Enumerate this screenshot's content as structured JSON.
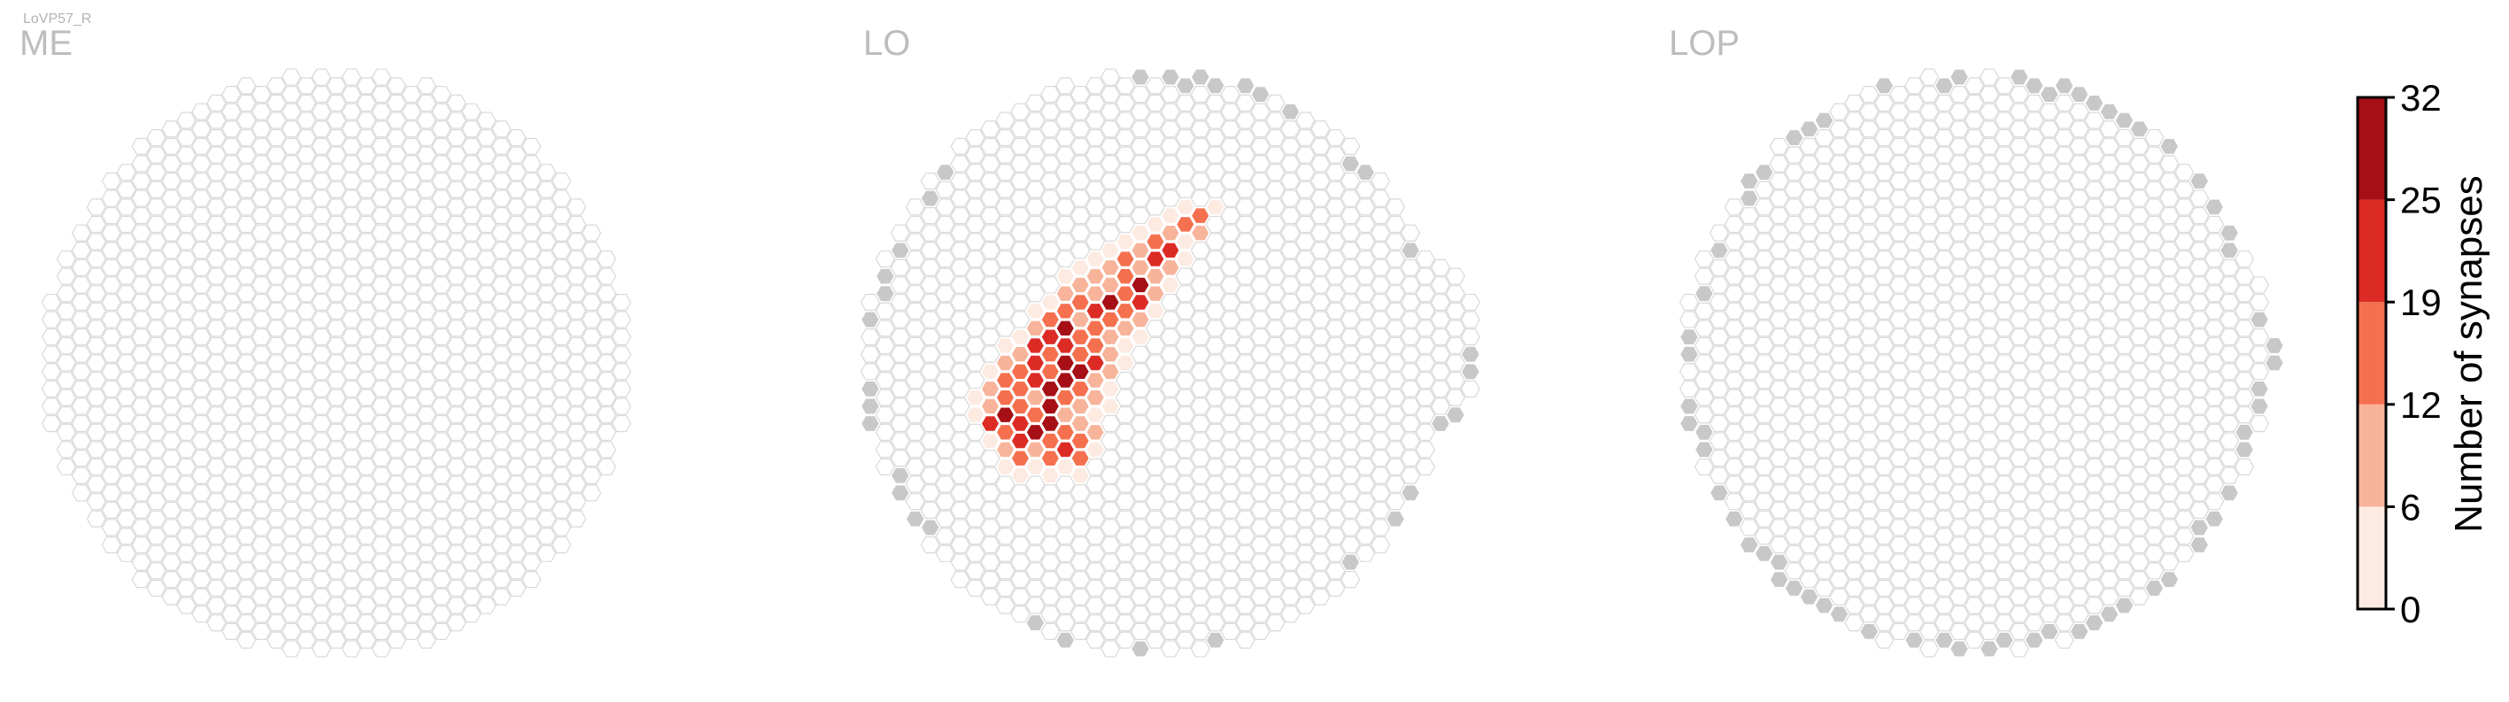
{
  "figure": {
    "cell_label": "LoVP57_R"
  },
  "chart_data": {
    "type": "heatmap",
    "title": "LoVP57_R",
    "panels": [
      {
        "label": "ME",
        "shape": "round",
        "synapse_cells": [],
        "edge_cells_gray": []
      },
      {
        "label": "LO",
        "shape": "roundish-bulge-right",
        "synapse_cells_description_hotspot": "upper-left quadrant",
        "synapse_cells": [
          [
            -10,
            6,
            3
          ],
          [
            -9,
            6,
            2
          ],
          [
            -8,
            6,
            5
          ],
          [
            -7,
            6,
            4
          ],
          [
            -6,
            6,
            3
          ],
          [
            -5,
            6,
            2
          ],
          [
            -10,
            5,
            8
          ],
          [
            -9,
            5,
            14
          ],
          [
            -8,
            5,
            10
          ],
          [
            -7,
            5,
            16
          ],
          [
            -6,
            5,
            20
          ],
          [
            -5,
            5,
            12
          ],
          [
            -4,
            5,
            4
          ],
          [
            -11,
            4,
            3
          ],
          [
            -10,
            4,
            12
          ],
          [
            -9,
            4,
            24
          ],
          [
            -8,
            4,
            30
          ],
          [
            -7,
            4,
            18
          ],
          [
            -6,
            4,
            14
          ],
          [
            -5,
            4,
            16
          ],
          [
            -4,
            4,
            6
          ],
          [
            -12,
            3,
            4
          ],
          [
            -11,
            3,
            20
          ],
          [
            -10,
            3,
            28
          ],
          [
            -9,
            3,
            22
          ],
          [
            -8,
            3,
            18
          ],
          [
            -7,
            3,
            29
          ],
          [
            -6,
            3,
            10
          ],
          [
            -5,
            3,
            8
          ],
          [
            -4,
            3,
            3
          ],
          [
            -12,
            2,
            5
          ],
          [
            -11,
            2,
            10
          ],
          [
            -10,
            2,
            18
          ],
          [
            -9,
            2,
            14
          ],
          [
            -8,
            2,
            8
          ],
          [
            -7,
            2,
            26
          ],
          [
            -6,
            2,
            16
          ],
          [
            -5,
            2,
            10
          ],
          [
            -4,
            2,
            6
          ],
          [
            -3,
            2,
            4
          ],
          [
            -11,
            1,
            8
          ],
          [
            -10,
            1,
            12
          ],
          [
            -9,
            1,
            16
          ],
          [
            -8,
            1,
            24
          ],
          [
            -7,
            1,
            28
          ],
          [
            -6,
            1,
            30
          ],
          [
            -5,
            1,
            12
          ],
          [
            -4,
            1,
            8
          ],
          [
            -3,
            1,
            3
          ],
          [
            -11,
            0,
            4
          ],
          [
            -10,
            0,
            6
          ],
          [
            -9,
            0,
            18
          ],
          [
            -8,
            0,
            22
          ],
          [
            -7,
            0,
            12
          ],
          [
            -6,
            0,
            27
          ],
          [
            -5,
            0,
            29
          ],
          [
            -4,
            0,
            20
          ],
          [
            -3,
            0,
            6
          ],
          [
            -2,
            0,
            3
          ],
          [
            -10,
            -1,
            3
          ],
          [
            -9,
            -1,
            10
          ],
          [
            -8,
            -1,
            24
          ],
          [
            -7,
            -1,
            14
          ],
          [
            -6,
            -1,
            20
          ],
          [
            -5,
            -1,
            14
          ],
          [
            -4,
            -1,
            12
          ],
          [
            -3,
            -1,
            10
          ],
          [
            -2,
            -1,
            4
          ],
          [
            -9,
            -2,
            4
          ],
          [
            -8,
            -2,
            8
          ],
          [
            -7,
            -2,
            22
          ],
          [
            -6,
            -2,
            26
          ],
          [
            -5,
            -2,
            12
          ],
          [
            -4,
            -2,
            18
          ],
          [
            -3,
            -2,
            8
          ],
          [
            -2,
            -2,
            6
          ],
          [
            -1,
            -2,
            3
          ],
          [
            -8,
            -3,
            5
          ],
          [
            -7,
            -3,
            12
          ],
          [
            -6,
            -3,
            16
          ],
          [
            -5,
            -3,
            10
          ],
          [
            -4,
            -3,
            24
          ],
          [
            -3,
            -3,
            14
          ],
          [
            -2,
            -3,
            16
          ],
          [
            -1,
            -3,
            8
          ],
          [
            0,
            -3,
            4
          ],
          [
            -7,
            -4,
            4
          ],
          [
            -6,
            -4,
            8
          ],
          [
            -5,
            -4,
            14
          ],
          [
            -4,
            -4,
            10
          ],
          [
            -3,
            -4,
            27
          ],
          [
            -2,
            -4,
            12
          ],
          [
            -1,
            -4,
            20
          ],
          [
            0,
            -4,
            6
          ],
          [
            -6,
            -5,
            3
          ],
          [
            -5,
            -5,
            6
          ],
          [
            -4,
            -5,
            10
          ],
          [
            -3,
            -5,
            8
          ],
          [
            -2,
            -5,
            16
          ],
          [
            -1,
            -5,
            26
          ],
          [
            0,
            -5,
            10
          ],
          [
            1,
            -5,
            4
          ],
          [
            -5,
            -6,
            3
          ],
          [
            -4,
            -6,
            4
          ],
          [
            -3,
            -6,
            6
          ],
          [
            -2,
            -6,
            12
          ],
          [
            -1,
            -6,
            8
          ],
          [
            0,
            -6,
            20
          ],
          [
            1,
            -6,
            6
          ],
          [
            2,
            -6,
            3
          ],
          [
            -3,
            -7,
            3
          ],
          [
            -2,
            -7,
            5
          ],
          [
            -1,
            -7,
            10
          ],
          [
            0,
            -7,
            14
          ],
          [
            1,
            -7,
            22
          ],
          [
            2,
            -7,
            5
          ],
          [
            -1,
            -8,
            3
          ],
          [
            0,
            -8,
            4
          ],
          [
            1,
            -8,
            8
          ],
          [
            2,
            -8,
            12
          ],
          [
            3,
            -8,
            6
          ],
          [
            1,
            -9,
            3
          ],
          [
            2,
            -9,
            4
          ],
          [
            3,
            -9,
            16
          ],
          [
            4,
            -9,
            3
          ]
        ]
      },
      {
        "label": "LOP",
        "shape": "round",
        "synapse_cells": [],
        "edge_cells_gray": "outer boundary ring (partial)"
      }
    ],
    "colorbar": {
      "label": "Number of synapses",
      "ticks": [
        "0",
        "6",
        "12",
        "19",
        "25",
        "32"
      ],
      "bins": [
        0,
        6,
        12,
        19,
        25,
        32
      ],
      "colors": [
        "#fdebe2",
        "#f7b49a",
        "#f5704e",
        "#dc2b25",
        "#a50f15"
      ]
    },
    "hex_outline_color": "#d9d9d9",
    "gray_cell_color": "#c8c8c8"
  }
}
